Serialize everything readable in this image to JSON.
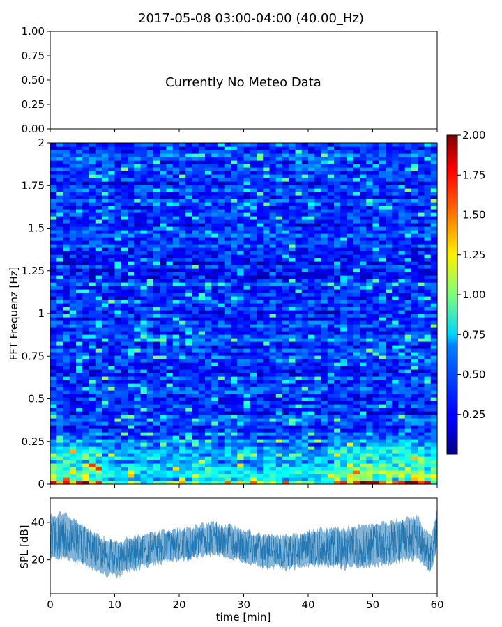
{
  "figure": {
    "title": "2017-05-08 03:00-04:00 (40.00_Hz)"
  },
  "chart_data": [
    {
      "type": "line",
      "panel": "meteo",
      "message": "Currently No Meteo Data",
      "ylim": [
        0,
        1
      ],
      "yticks": [
        "0.00",
        "0.25",
        "0.50",
        "0.75",
        "1.00"
      ],
      "xlim": [
        0,
        60
      ],
      "series": []
    },
    {
      "type": "heatmap",
      "panel": "spectrogram",
      "ylabel": "FFT Frequenz [Hz]",
      "ylim": [
        0,
        2
      ],
      "yticks": [
        "0",
        "0.25",
        "0.5",
        "0.75",
        "1",
        "1.25",
        "1.5",
        "1.75",
        "2"
      ],
      "xlim": [
        0,
        60
      ],
      "colormap": "jet",
      "clim": [
        0,
        2
      ],
      "colorbar_ticks": [
        "0.25",
        "0.50",
        "0.75",
        "1.00",
        "1.25",
        "1.50",
        "1.75",
        "2.00"
      ],
      "typical_value": 0.3,
      "low_frequency_band_value": 1.2
    },
    {
      "type": "line",
      "panel": "spl",
      "xlabel": "time [min]",
      "ylabel": "SPL [dB]",
      "xlim": [
        0,
        60
      ],
      "ylim": [
        2,
        53
      ],
      "xticks": [
        "0",
        "10",
        "20",
        "30",
        "40",
        "50",
        "60"
      ],
      "yticks": [
        "20",
        "40"
      ],
      "color": "#1f77b4",
      "envelope": {
        "x": [
          0,
          2,
          5,
          8,
          10,
          12,
          15,
          18,
          20,
          22,
          25,
          28,
          30,
          33,
          35,
          38,
          40,
          42,
          45,
          48,
          50,
          53,
          55,
          57,
          58,
          59,
          60
        ],
        "mean": [
          32,
          33,
          29,
          24,
          22,
          23,
          25,
          27,
          28,
          28,
          31,
          30,
          27,
          26,
          25,
          25,
          26,
          27,
          26,
          27,
          28,
          29,
          31,
          32,
          26,
          23,
          34
        ],
        "upper": [
          45,
          47,
          40,
          33,
          31,
          33,
          35,
          37,
          38,
          39,
          41,
          40,
          37,
          35,
          34,
          35,
          36,
          38,
          38,
          40,
          41,
          42,
          44,
          45,
          38,
          34,
          48
        ],
        "lower": [
          18,
          20,
          16,
          11,
          9,
          12,
          15,
          17,
          18,
          19,
          22,
          20,
          17,
          15,
          14,
          14,
          15,
          16,
          14,
          15,
          15,
          16,
          18,
          20,
          15,
          12,
          25
        ]
      }
    }
  ]
}
